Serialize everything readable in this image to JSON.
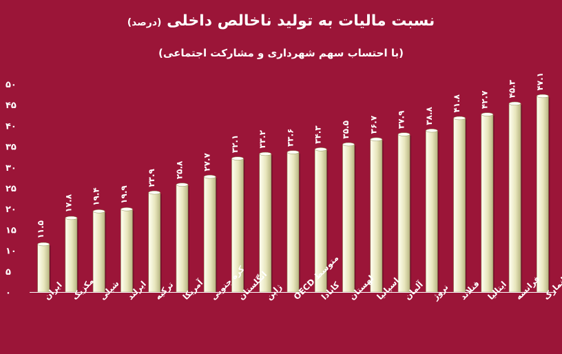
{
  "chart_data": {
    "type": "bar",
    "title": "نسبت مالیات به تولید ناخالص داخلی",
    "title_unit": "(درصد)",
    "subtitle": "(با احتساب سهم شهرداری و مشارکت اجتماعی)",
    "categories": [
      "ایران",
      "مکزیک",
      "شیلی",
      "ایرلند",
      "ترکیه",
      "آمریکا",
      "کره جنوبی",
      "انگلستان",
      "ژاپن",
      "متوسط OECD",
      "کانادا",
      "لهستان",
      "اسپانیا",
      "آلمان",
      "نروژ",
      "فنلاند",
      "ایتالیا",
      "فرانسه",
      "دانمارک"
    ],
    "values": [
      11.5,
      17.8,
      19.4,
      19.9,
      23.9,
      25.8,
      27.7,
      32.1,
      33.2,
      33.6,
      34.3,
      35.5,
      36.7,
      37.9,
      38.8,
      41.8,
      42.7,
      45.3,
      47.1
    ],
    "value_labels": [
      "۱۱.۵",
      "۱۷.۸",
      "۱۹.۴",
      "۱۹.۹",
      "۲۳.۹",
      "۲۵.۸",
      "۲۷.۷",
      "۳۲.۱",
      "۳۳.۲",
      "۳۳.۶",
      "۳۴.۳",
      "۳۵.۵",
      "۳۶.۷",
      "۳۷.۹",
      "۳۸.۸",
      "۴۱.۸",
      "۴۲.۷",
      "۴۵.۳",
      "۴۷.۱"
    ],
    "yticks": [
      0,
      5,
      10,
      15,
      20,
      25,
      30,
      35,
      40,
      45,
      50
    ],
    "ytick_labels": [
      "۰",
      "۵",
      "۱۰",
      "۱۵",
      "۲۰",
      "۲۵",
      "۳۰",
      "۳۵",
      "۴۰",
      "۴۵",
      "۵۰"
    ],
    "ylim": [
      0,
      50
    ],
    "grid": false,
    "legend": "none",
    "colors": {
      "background": "#9b1538",
      "bar_light": "#fffff2",
      "bar_mid": "#e8e6bd",
      "bar_dark": "#b9b784",
      "text": "#ffffff",
      "axis": "#ffffff"
    }
  }
}
